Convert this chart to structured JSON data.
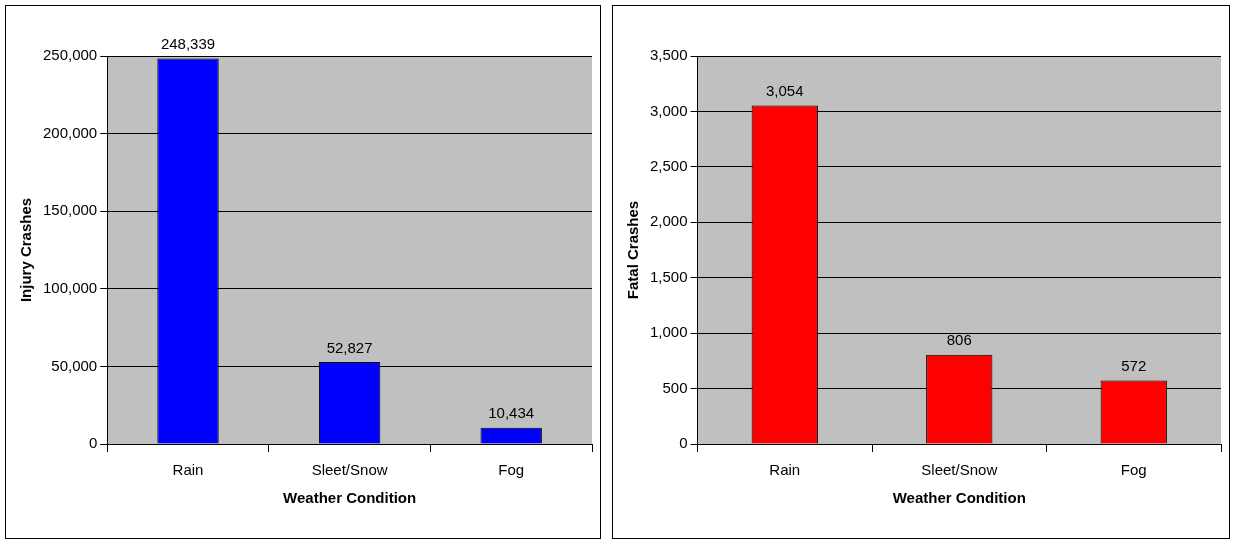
{
  "chart_data": [
    {
      "type": "bar",
      "xlabel": "Weather Condition",
      "ylabel": "Injury Crashes",
      "categories": [
        "Rain",
        "Sleet/Snow",
        "Fog"
      ],
      "values": [
        248339,
        52827,
        10434
      ],
      "value_labels": [
        "248,339",
        "52,827",
        "10,434"
      ],
      "color": "#0000ff",
      "ylim": [
        0,
        250000
      ],
      "yticks": [
        {
          "value": 0,
          "label": "0"
        },
        {
          "value": 50000,
          "label": "50,000"
        },
        {
          "value": 100000,
          "label": "100,000"
        },
        {
          "value": 150000,
          "label": "150,000"
        },
        {
          "value": 200000,
          "label": "200,000"
        },
        {
          "value": 250000,
          "label": "250,000"
        }
      ],
      "grid": "y"
    },
    {
      "type": "bar",
      "xlabel": "Weather Condition",
      "ylabel": "Fatal Crashes",
      "categories": [
        "Rain",
        "Sleet/Snow",
        "Fog"
      ],
      "values": [
        3054,
        806,
        572
      ],
      "value_labels": [
        "3,054",
        "806",
        "572"
      ],
      "color": "#ff0000",
      "ylim": [
        0,
        3500
      ],
      "yticks": [
        {
          "value": 0,
          "label": "0"
        },
        {
          "value": 500,
          "label": "500"
        },
        {
          "value": 1000,
          "label": "1,000"
        },
        {
          "value": 1500,
          "label": "1,500"
        },
        {
          "value": 2000,
          "label": "2,000"
        },
        {
          "value": 2500,
          "label": "2,500"
        },
        {
          "value": 3000,
          "label": "3,000"
        },
        {
          "value": 3500,
          "label": "3,500"
        }
      ],
      "grid": "y"
    }
  ]
}
